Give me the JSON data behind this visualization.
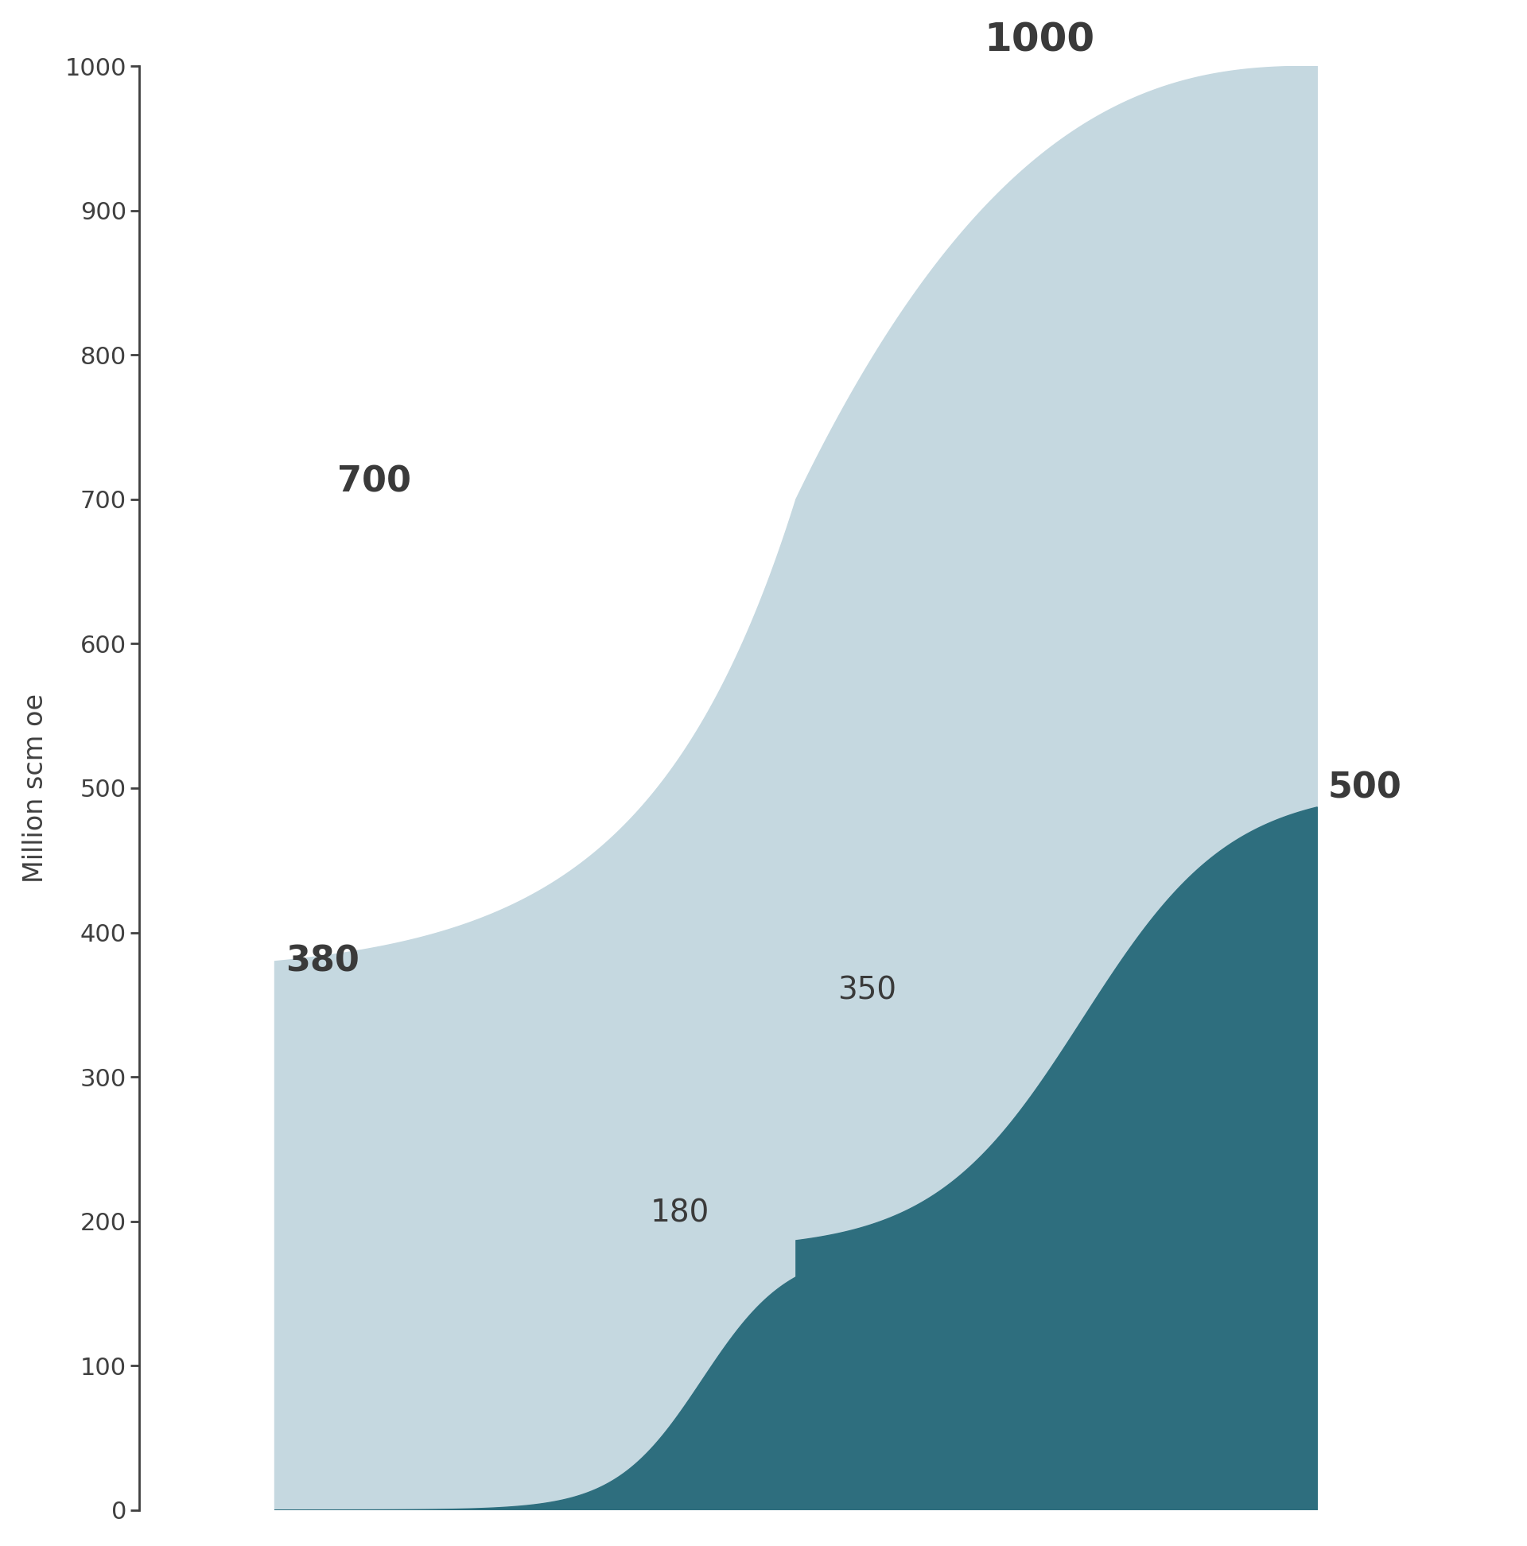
{
  "ylabel": "Million scm oe",
  "ylim": [
    0,
    1000
  ],
  "yticks": [
    0,
    100,
    200,
    300,
    400,
    500,
    600,
    700,
    800,
    900,
    1000
  ],
  "background_color": "#ffffff",
  "light_color": "#c5d8e0",
  "dark_color": "#2e6e7e",
  "text_color": "#404040",
  "dark_text_color": "#3a3a3a",
  "label_fontsize": 28,
  "label_bold_fontsize": 32,
  "title_fontsize": 36,
  "axis_fontsize": 24,
  "tick_fontsize": 22
}
